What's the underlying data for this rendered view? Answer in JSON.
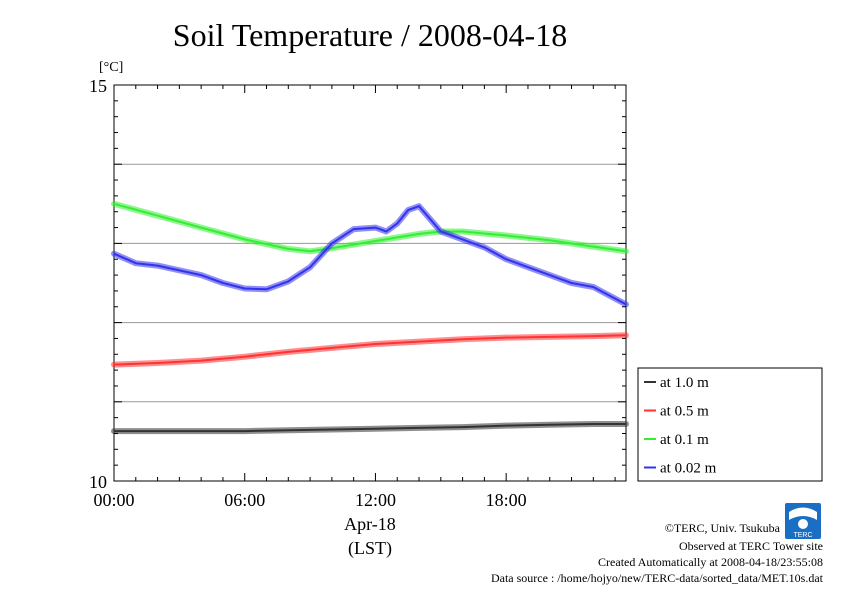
{
  "chart_data": {
    "type": "line",
    "title": "Soil Temperature / 2008-04-18",
    "unit_label": "[°C]",
    "ylim": [
      10,
      15
    ],
    "y_ticks": [
      "15",
      "10"
    ],
    "y_gridlines": [
      11,
      12,
      13,
      14
    ],
    "xlim": [
      0,
      23.5
    ],
    "x_ticks": [
      {
        "value": 0,
        "label": "00:00"
      },
      {
        "value": 6,
        "label": "06:00"
      },
      {
        "value": 12,
        "label": "12:00"
      },
      {
        "value": 18,
        "label": "18:00"
      }
    ],
    "x_date_label": "Apr-18",
    "x_tz_label": "(LST)",
    "legend_position": "bottom-right",
    "grid": true,
    "series": [
      {
        "name": "at 1.0 m",
        "color": "#333333",
        "x": [
          0,
          2,
          4,
          6,
          8,
          10,
          12,
          14,
          16,
          18,
          20,
          22,
          23.5
        ],
        "values": [
          10.63,
          10.63,
          10.63,
          10.63,
          10.64,
          10.65,
          10.66,
          10.67,
          10.68,
          10.7,
          10.71,
          10.72,
          10.72
        ]
      },
      {
        "name": "at 0.5 m",
        "color": "#ff3333",
        "x": [
          0,
          2,
          4,
          6,
          8,
          10,
          12,
          14,
          16,
          18,
          20,
          22,
          23.5
        ],
        "values": [
          11.47,
          11.49,
          11.52,
          11.57,
          11.63,
          11.68,
          11.73,
          11.76,
          11.79,
          11.81,
          11.82,
          11.83,
          11.84
        ]
      },
      {
        "name": "at 0.1 m",
        "color": "#33ee33",
        "x": [
          0,
          2,
          4,
          6,
          8,
          9,
          10,
          12,
          14,
          15,
          16,
          18,
          20,
          22,
          23.5
        ],
        "values": [
          13.5,
          13.35,
          13.2,
          13.05,
          12.93,
          12.9,
          12.94,
          13.03,
          13.12,
          13.15,
          13.15,
          13.1,
          13.04,
          12.96,
          12.9
        ]
      },
      {
        "name": "at 0.02 m",
        "color": "#3333ee",
        "x": [
          0,
          1,
          2,
          4,
          5,
          6,
          7,
          8,
          9,
          10,
          11,
          12,
          12.5,
          13,
          13.5,
          14,
          15,
          16,
          17,
          18,
          19,
          20,
          21,
          22,
          23.5
        ],
        "values": [
          12.87,
          12.75,
          12.72,
          12.6,
          12.5,
          12.43,
          12.42,
          12.52,
          12.7,
          13.0,
          13.18,
          13.2,
          13.15,
          13.25,
          13.42,
          13.47,
          13.15,
          13.05,
          12.95,
          12.8,
          12.7,
          12.6,
          12.5,
          12.45,
          12.23
        ]
      }
    ]
  },
  "footer": {
    "copyright": "©TERC, Univ. Tsukuba",
    "observed": "Observed at TERC Tower site",
    "created": "Created Automatically at 2008-04-18/23:55:08",
    "source": "Data source : /home/hojyo/new/TERC-data/sorted_data/MET.10s.dat"
  },
  "logo": {
    "text": "TERC",
    "icon": "terc-logo-icon",
    "color": "#1a6fc4"
  }
}
